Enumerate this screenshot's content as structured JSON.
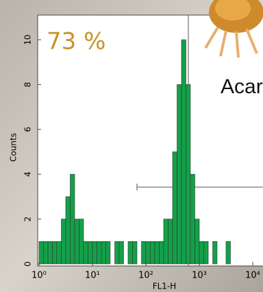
{
  "chart_data": {
    "type": "histogram",
    "x_label": "FL1-H",
    "y_label": "Counts",
    "annotations": [
      "73 %",
      "Acari"
    ],
    "xscale": "log",
    "xlim": [
      1,
      10000
    ],
    "xticks": [
      {
        "value": 1,
        "label": "10⁰"
      },
      {
        "value": 10,
        "label": "10¹"
      },
      {
        "value": 100,
        "label": "10²"
      },
      {
        "value": 1000,
        "label": "10³"
      },
      {
        "value": 10000,
        "label": "10⁴"
      }
    ],
    "ylim": [
      0,
      11.1
    ],
    "yticks": [
      0,
      2,
      4,
      6,
      8,
      10
    ],
    "color": "#14a04a",
    "bins": [
      1,
      1.21,
      1.47,
      1.78,
      2.15,
      2.61,
      3.16,
      3.83,
      4.64,
      5.62,
      6.81,
      8.25,
      10,
      12.1,
      14.7,
      17.8,
      21.5,
      26.1,
      31.6,
      38.3,
      46.4,
      56.2,
      68.1,
      82.5,
      100,
      121,
      147,
      178,
      215,
      261,
      316,
      383,
      464,
      562,
      681,
      825,
      1000,
      1210,
      1470,
      1780,
      2150,
      2610,
      3160,
      3830,
      4640,
      5620,
      6810,
      8250,
      10000
    ],
    "values": [
      1,
      1,
      1,
      1,
      1,
      2,
      3,
      4,
      2,
      2,
      1,
      1,
      1,
      1,
      1,
      1,
      0,
      1,
      1,
      0,
      1,
      1,
      0,
      1,
      1,
      1,
      1,
      1,
      2,
      2,
      5,
      8,
      10,
      8,
      4,
      2,
      1,
      1,
      0,
      1,
      0,
      0,
      1,
      0,
      0,
      0,
      0,
      0
    ]
  }
}
